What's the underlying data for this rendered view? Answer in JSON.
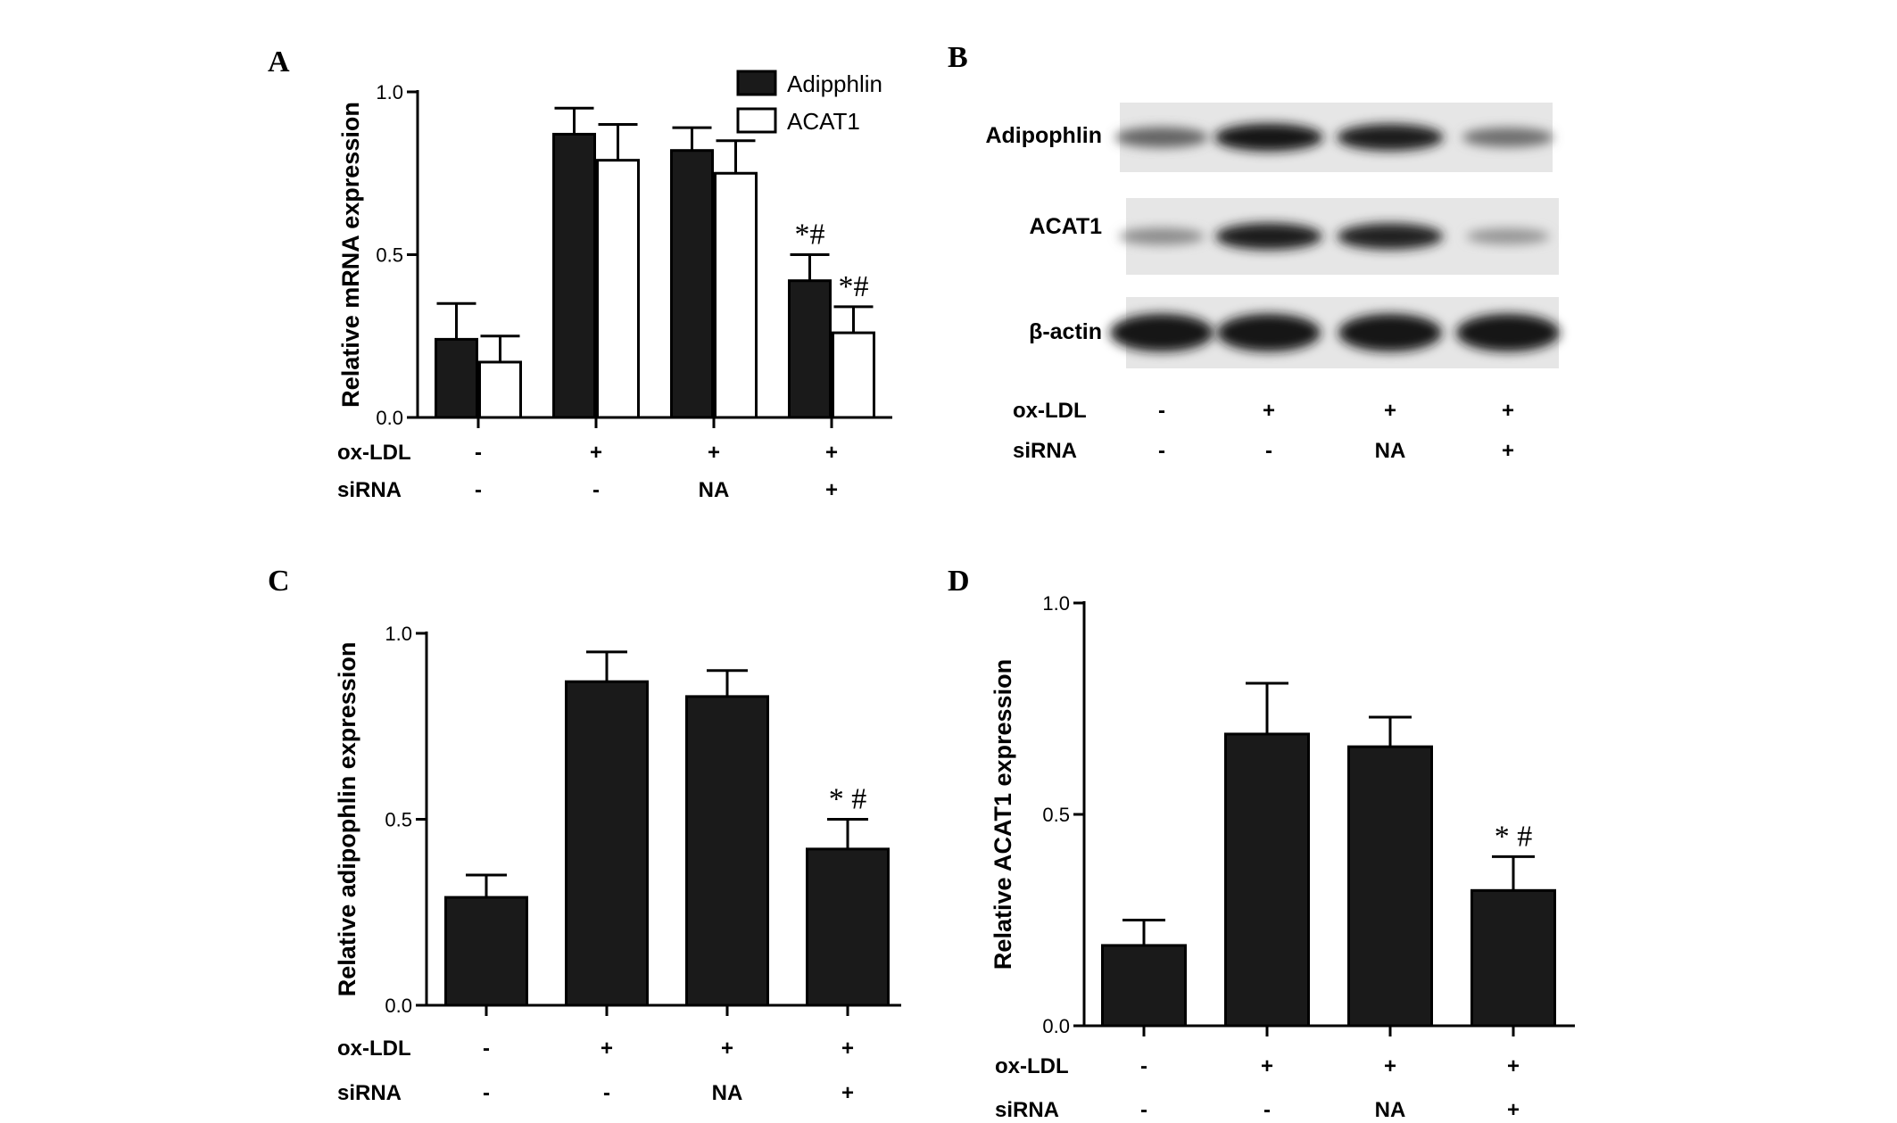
{
  "panels": {
    "A": {
      "letter": "A",
      "ylabel": "Relative mRNA expression",
      "legend": [
        {
          "label": "Adipphlin",
          "color": "#1a1a1a"
        },
        {
          "label": "ACAT1",
          "color": "#ffffff"
        }
      ],
      "row_labels": [
        "ox-LDL",
        "siRNA"
      ]
    },
    "B": {
      "letter": "B",
      "band_labels": [
        "Adipophlin",
        "ACAT1",
        "β-actin"
      ],
      "band_intensity": [
        [
          0.55,
          0.95,
          0.9,
          0.5
        ],
        [
          0.35,
          0.9,
          0.88,
          0.3
        ],
        [
          0.95,
          0.95,
          0.95,
          0.95
        ]
      ],
      "row_labels": [
        "ox-LDL",
        "siRNA"
      ],
      "conditions": {
        "oxldl": [
          "-",
          "+",
          "+",
          "+"
        ],
        "sirna": [
          "-",
          "-",
          "NA",
          "+"
        ]
      }
    },
    "C": {
      "letter": "C",
      "ylabel": "Relative adipophlin expression",
      "row_labels": [
        "ox-LDL",
        "siRNA"
      ]
    },
    "D": {
      "letter": "D",
      "ylabel": "Relative ACAT1 expression",
      "row_labels": [
        "ox-LDL",
        "siRNA"
      ]
    }
  },
  "chart_data": [
    {
      "panel": "A",
      "type": "bar",
      "ylabel": "Relative mRNA expression",
      "ylim": [
        0,
        1.0
      ],
      "yticks": [
        "0.0",
        "0.5",
        "1.0"
      ],
      "groups": {
        "oxldl": [
          "-",
          "+",
          "+",
          "+"
        ],
        "sirna": [
          "-",
          "-",
          "NA",
          "+"
        ]
      },
      "series": [
        {
          "name": "Adipphlin",
          "values": [
            0.24,
            0.87,
            0.82,
            0.42
          ],
          "errors": [
            0.11,
            0.08,
            0.07,
            0.08
          ],
          "fill": "#1a1a1a"
        },
        {
          "name": "ACAT1",
          "values": [
            0.17,
            0.79,
            0.75,
            0.26
          ],
          "errors": [
            0.08,
            0.11,
            0.1,
            0.08
          ],
          "fill": "#ffffff"
        }
      ],
      "annotations": [
        {
          "group": 3,
          "series": 0,
          "text": "*#"
        },
        {
          "group": 3,
          "series": 1,
          "text": "*#"
        }
      ]
    },
    {
      "panel": "C",
      "type": "bar",
      "ylabel": "Relative adipophlin expression",
      "ylim": [
        0,
        1.0
      ],
      "yticks": [
        "0.0",
        "0.5",
        "1.0"
      ],
      "groups": {
        "oxldl": [
          "-",
          "+",
          "+",
          "+"
        ],
        "sirna": [
          "-",
          "-",
          "NA",
          "+"
        ]
      },
      "values": [
        0.29,
        0.87,
        0.83,
        0.42
      ],
      "errors": [
        0.06,
        0.08,
        0.07,
        0.08
      ],
      "annotations": [
        {
          "group": 3,
          "text": "* #"
        }
      ]
    },
    {
      "panel": "D",
      "type": "bar",
      "ylabel": "Relative ACAT1 expression",
      "ylim": [
        0,
        1.0
      ],
      "yticks": [
        "0.0",
        "0.5",
        "1.0"
      ],
      "groups": {
        "oxldl": [
          "-",
          "+",
          "+",
          "+"
        ],
        "sirna": [
          "-",
          "-",
          "NA",
          "+"
        ]
      },
      "values": [
        0.19,
        0.69,
        0.66,
        0.32
      ],
      "errors": [
        0.06,
        0.12,
        0.07,
        0.08
      ],
      "annotations": [
        {
          "group": 3,
          "text": "* #"
        }
      ]
    }
  ]
}
